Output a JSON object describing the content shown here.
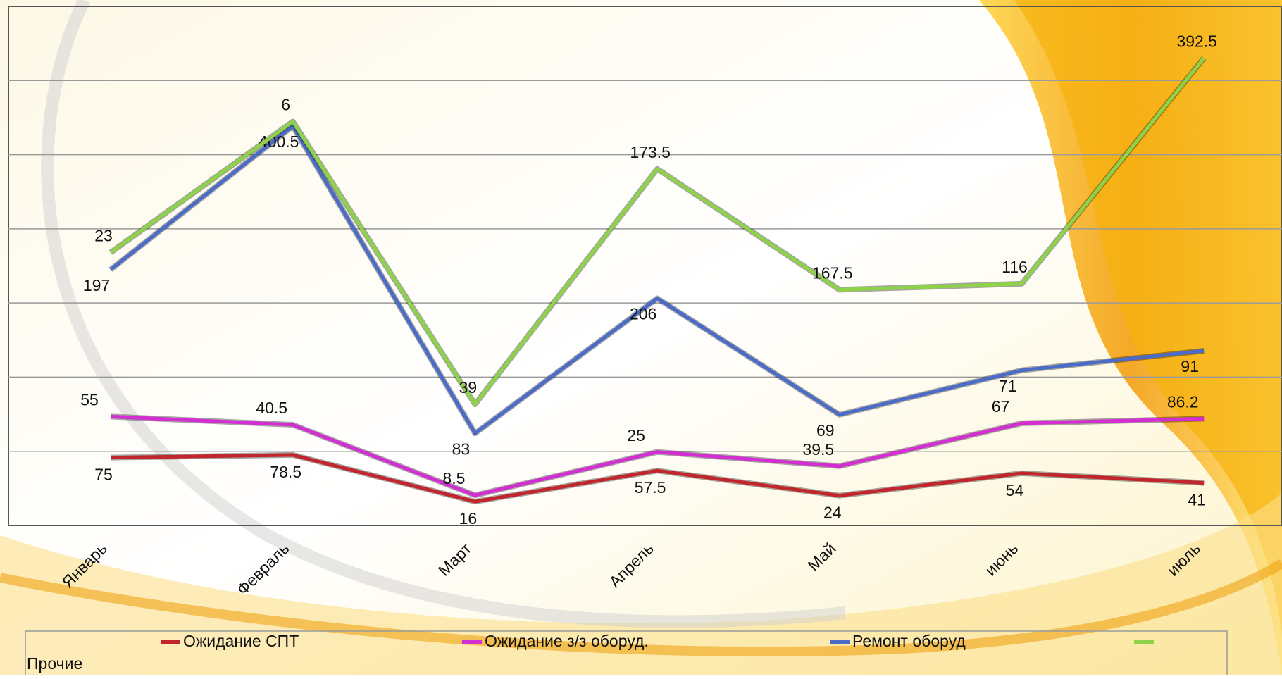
{
  "chart_data": {
    "type": "line",
    "stacked": true,
    "categories": [
      "Январь",
      "Февраль",
      "Март",
      "Апрель",
      "Май",
      "июнь",
      "июль"
    ],
    "series": [
      {
        "name": "Ожидание СПТ",
        "color": "#c0262c",
        "values": [
          75,
          78.5,
          16,
          57.5,
          24,
          54,
          41
        ]
      },
      {
        "name": "Ожидание з/з оборуд.",
        "color": "#d22ed2",
        "values": [
          55,
          40.5,
          8.5,
          25,
          39.5,
          67,
          86.2
        ]
      },
      {
        "name": "Ремонт оборуд",
        "color": "#4a6bc8",
        "values": [
          197,
          400.5,
          83,
          206,
          69,
          71,
          91
        ]
      },
      {
        "name": "Прочие",
        "color": "#8ed24a",
        "values": [
          23,
          6,
          39,
          173.5,
          167.5,
          116,
          392.5
        ]
      }
    ],
    "ylim": [
      -16,
      680
    ],
    "grid": true
  }
}
